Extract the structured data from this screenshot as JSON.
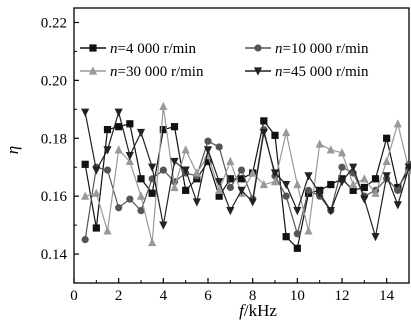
{
  "chart_data": {
    "type": "line",
    "xlabel": {
      "italic": "f",
      "unit": "/kHz"
    },
    "ylabel": "η",
    "xlim": [
      0,
      15
    ],
    "ylim": [
      0.13,
      0.225
    ],
    "xticks": [
      0,
      2,
      4,
      6,
      8,
      10,
      12,
      14
    ],
    "yticks": [
      0.14,
      0.16,
      0.18,
      0.2,
      0.22
    ],
    "grid": false,
    "legend_position": "top",
    "x": [
      0.5,
      1,
      1.5,
      2,
      2.5,
      3,
      3.5,
      4,
      4.5,
      5,
      5.5,
      6,
      6.5,
      7,
      7.5,
      8,
      8.5,
      9,
      9.5,
      10,
      10.5,
      11,
      11.5,
      12,
      12.5,
      13,
      13.5,
      14,
      14.5,
      15
    ],
    "series": [
      {
        "name": "n=4 000 r/min",
        "name_parts": [
          "n",
          "=4 000 r/min"
        ],
        "marker": "square",
        "color": "#111111",
        "values": [
          0.171,
          0.149,
          0.183,
          0.184,
          0.185,
          0.166,
          0.161,
          0.183,
          0.184,
          0.162,
          0.166,
          0.172,
          0.16,
          0.166,
          0.166,
          0.168,
          0.186,
          0.181,
          0.146,
          0.142,
          0.161,
          0.162,
          0.164,
          0.166,
          0.162,
          0.163,
          0.166,
          0.18,
          0.163,
          0.169
        ]
      },
      {
        "name": "n=10 000 r/min",
        "name_parts": [
          "n",
          "=10 000 r/min"
        ],
        "marker": "circle",
        "color": "#555555",
        "values": [
          0.145,
          0.17,
          0.169,
          0.156,
          0.159,
          0.155,
          0.166,
          0.169,
          0.165,
          0.168,
          0.167,
          0.179,
          0.177,
          0.163,
          0.169,
          0.159,
          0.183,
          0.167,
          0.16,
          0.147,
          0.162,
          0.16,
          0.155,
          0.17,
          0.168,
          0.16,
          0.162,
          0.166,
          0.162,
          0.171
        ]
      },
      {
        "name": "n=30 000 r/min",
        "name_parts": [
          "n",
          "=30 000 r/min"
        ],
        "marker": "triangle-up",
        "color": "#999999",
        "values": [
          0.16,
          0.161,
          0.148,
          0.176,
          0.172,
          0.16,
          0.144,
          0.191,
          0.163,
          0.176,
          0.168,
          0.174,
          0.162,
          0.172,
          0.161,
          0.168,
          0.164,
          0.165,
          0.182,
          0.164,
          0.148,
          0.178,
          0.176,
          0.175,
          0.164,
          0.166,
          0.161,
          0.172,
          0.185,
          0.169
        ]
      },
      {
        "name": "n=45 000 r/min",
        "name_parts": [
          "n",
          "=45 000 r/min"
        ],
        "marker": "triangle-down",
        "color": "#222222",
        "values": [
          0.189,
          0.169,
          0.176,
          0.189,
          0.174,
          0.182,
          0.17,
          0.15,
          0.172,
          0.169,
          0.158,
          0.176,
          0.165,
          0.155,
          0.162,
          0.158,
          0.182,
          0.168,
          0.164,
          0.155,
          0.167,
          0.161,
          0.155,
          0.165,
          0.17,
          0.159,
          0.146,
          0.167,
          0.157,
          0.17
        ]
      }
    ]
  }
}
